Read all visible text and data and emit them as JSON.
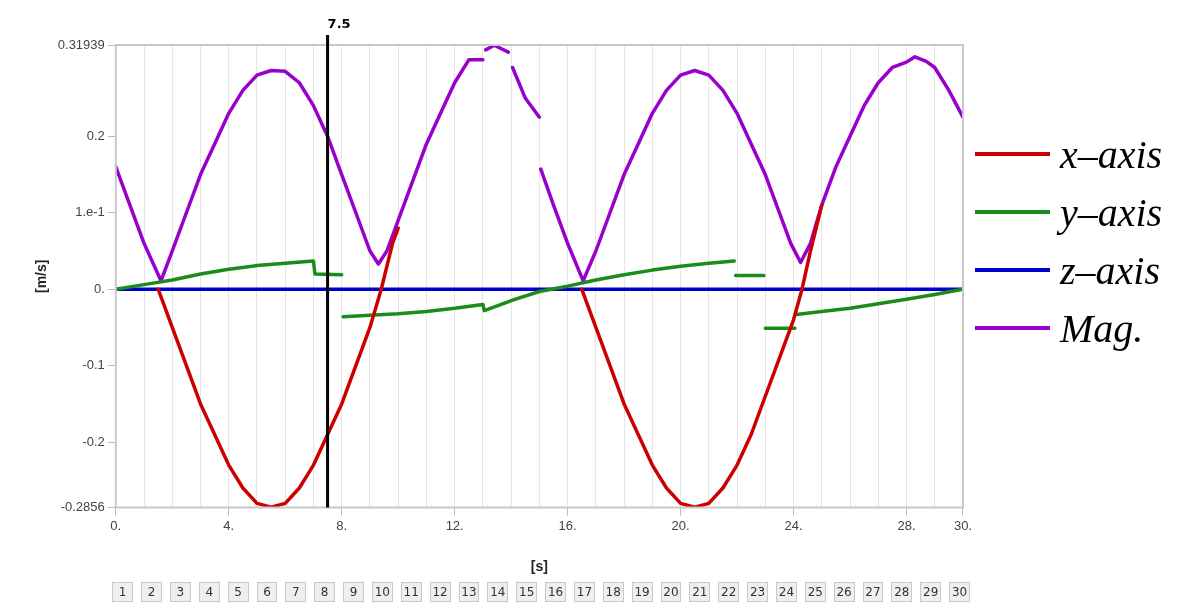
{
  "chart_data": {
    "type": "line",
    "xlabel": "[s]",
    "ylabel": "[m/s]",
    "xlim": [
      0,
      30
    ],
    "ylim": [
      -0.2856,
      0.31939
    ],
    "xticks": [
      {
        "value": 0,
        "label": "0."
      },
      {
        "value": 1,
        "label": null
      },
      {
        "value": 2,
        "label": null
      },
      {
        "value": 3,
        "label": null
      },
      {
        "value": 4,
        "label": "4."
      },
      {
        "value": 5,
        "label": null
      },
      {
        "value": 6,
        "label": null
      },
      {
        "value": 7,
        "label": null
      },
      {
        "value": 8,
        "label": "8."
      },
      {
        "value": 9,
        "label": null
      },
      {
        "value": 10,
        "label": null
      },
      {
        "value": 11,
        "label": null
      },
      {
        "value": 12,
        "label": "12."
      },
      {
        "value": 13,
        "label": null
      },
      {
        "value": 14,
        "label": null
      },
      {
        "value": 15,
        "label": null
      },
      {
        "value": 16,
        "label": "16."
      },
      {
        "value": 17,
        "label": null
      },
      {
        "value": 18,
        "label": null
      },
      {
        "value": 19,
        "label": null
      },
      {
        "value": 20,
        "label": "20."
      },
      {
        "value": 21,
        "label": null
      },
      {
        "value": 22,
        "label": null
      },
      {
        "value": 23,
        "label": null
      },
      {
        "value": 24,
        "label": "24."
      },
      {
        "value": 25,
        "label": null
      },
      {
        "value": 26,
        "label": null
      },
      {
        "value": 27,
        "label": null
      },
      {
        "value": 28,
        "label": "28."
      },
      {
        "value": 29,
        "label": null
      },
      {
        "value": 30,
        "label": "30."
      }
    ],
    "yticks": [
      {
        "value": -0.2856,
        "label": "-0.2856"
      },
      {
        "value": -0.2,
        "label": "-0.2"
      },
      {
        "value": -0.1,
        "label": "-0.1"
      },
      {
        "value": 0,
        "label": "0."
      },
      {
        "value": 0.1,
        "label": "1.e-1"
      },
      {
        "value": 0.2,
        "label": "0.2"
      },
      {
        "value": 0.31939,
        "label": "0.31939"
      }
    ],
    "grid": "x",
    "legend": "right",
    "marker": "none",
    "line_style": "solid",
    "ref_lines": [
      {
        "axis": "x",
        "value": 7.5,
        "label": "7.5",
        "color": "#000000"
      }
    ],
    "series": [
      {
        "name": "x–axis",
        "color": "#cc0000",
        "x": [
          1.5,
          2,
          2.5,
          3,
          3.5,
          4,
          4.5,
          5,
          5.5,
          6,
          6.5,
          7,
          7.5,
          8,
          8.5,
          9,
          9.4,
          9.8,
          10,
          10.05,
          16.5,
          17,
          17.5,
          18,
          18.5,
          19,
          19.5,
          20,
          20.5,
          21,
          21.5,
          22,
          22.5,
          23,
          23.5,
          24,
          24.3,
          24.6,
          25
        ],
        "values": [
          0,
          -0.05,
          -0.1,
          -0.15,
          -0.19,
          -0.23,
          -0.26,
          -0.28,
          -0.285,
          -0.28,
          -0.26,
          -0.23,
          -0.19,
          -0.15,
          -0.1,
          -0.05,
          0,
          0.06,
          0.08,
          null,
          0,
          -0.05,
          -0.1,
          -0.15,
          -0.19,
          -0.23,
          -0.26,
          -0.28,
          -0.285,
          -0.28,
          -0.26,
          -0.23,
          -0.19,
          -0.14,
          -0.09,
          -0.04,
          0,
          0.05,
          0.11
        ]
      },
      {
        "name": "y–axis",
        "color": "#1a8c1a",
        "x": [
          0,
          1,
          2,
          3,
          4,
          5,
          6,
          7,
          7.05,
          8,
          8.02,
          8.05,
          9,
          10,
          11,
          12,
          13,
          13.05,
          14,
          15,
          16,
          17,
          18,
          19,
          20,
          21,
          21.9,
          21.92,
          21.95,
          22.95,
          22.97,
          23,
          24.05,
          24.07,
          24.1,
          25,
          26,
          27,
          28,
          29,
          30
        ],
        "values": [
          0,
          0.006,
          0.012,
          0.02,
          0.026,
          0.031,
          0.034,
          0.037,
          0.02,
          0.019,
          null,
          -0.036,
          -0.034,
          -0.032,
          -0.029,
          -0.025,
          -0.02,
          -0.028,
          -0.015,
          -0.003,
          0.004,
          0.012,
          0.019,
          0.025,
          0.03,
          0.034,
          0.037,
          null,
          0.018,
          0.018,
          null,
          -0.051,
          -0.051,
          null,
          -0.033,
          -0.029,
          -0.025,
          -0.019,
          -0.013,
          -0.007,
          0
        ]
      },
      {
        "name": "z–axis",
        "color": "#0000cc",
        "x": [
          0,
          30
        ],
        "values": [
          0,
          0
        ]
      },
      {
        "name": "Mag.",
        "color": "#9900cc",
        "x": [
          0,
          0.5,
          1,
          1.6,
          2,
          2.5,
          3,
          3.5,
          4,
          4.5,
          5,
          5.5,
          6,
          6.5,
          7,
          7.5,
          8,
          8.5,
          9,
          9.3,
          9.6,
          10,
          10.5,
          11,
          11.5,
          12,
          12.5,
          13,
          13.05,
          13.1,
          13.4,
          13.9,
          14,
          14.05,
          14.5,
          15,
          15.02,
          15.05,
          15.5,
          16,
          16.55,
          17,
          17.5,
          18,
          18.5,
          19,
          19.5,
          20,
          20.5,
          21,
          21.5,
          22,
          22.5,
          23,
          23.5,
          23.9,
          24.25,
          24.6,
          25,
          25.5,
          26,
          26.5,
          27,
          27.5,
          28,
          28.3,
          28.7,
          29,
          29.5,
          30
        ],
        "values": [
          0.16,
          0.11,
          0.06,
          0.011,
          0.05,
          0.1,
          0.15,
          0.19,
          0.23,
          0.26,
          0.28,
          0.286,
          0.285,
          0.27,
          0.24,
          0.2,
          0.15,
          0.1,
          0.05,
          0.033,
          0.05,
          0.09,
          0.14,
          0.19,
          0.23,
          0.27,
          0.3,
          0.3,
          null,
          0.313,
          0.319,
          0.31,
          null,
          0.29,
          0.25,
          0.225,
          null,
          0.157,
          0.11,
          0.06,
          0.011,
          0.05,
          0.1,
          0.15,
          0.19,
          0.23,
          0.26,
          0.28,
          0.286,
          0.28,
          0.26,
          0.23,
          0.19,
          0.15,
          0.1,
          0.06,
          0.035,
          0.06,
          0.11,
          0.16,
          0.2,
          0.24,
          0.27,
          0.29,
          0.297,
          0.304,
          0.298,
          0.29,
          0.26,
          0.225
        ]
      }
    ],
    "annotations": [
      "1",
      "2",
      "3",
      "4",
      "5",
      "6",
      "7",
      "8",
      "9",
      "10",
      "11",
      "12",
      "13",
      "14",
      "15",
      "16",
      "17",
      "18",
      "19",
      "20",
      "21",
      "22",
      "23",
      "24",
      "25",
      "26",
      "27",
      "28",
      "29",
      "30"
    ]
  }
}
